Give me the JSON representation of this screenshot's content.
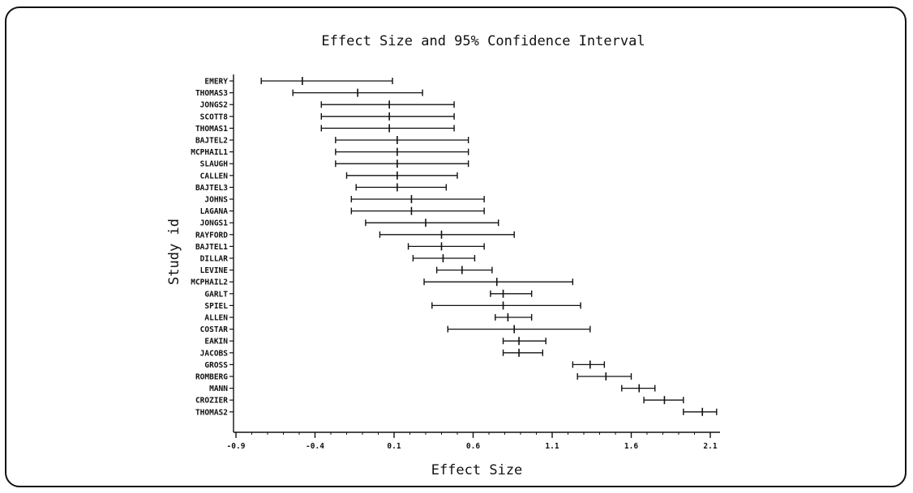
{
  "chart_data": {
    "type": "forest",
    "title": "Effect Size and 95% Confidence Interval",
    "xlabel": "Effect Size",
    "ylabel": "Study id",
    "xlim": [
      -0.9,
      2.3
    ],
    "xticks": [
      -0.9,
      -0.4,
      0.1,
      0.6,
      1.1,
      1.6,
      2.1
    ],
    "xtick_labels": [
      "-0.9",
      "-0.4",
      "0.1",
      "0.6",
      "1.1",
      "1.6",
      "2.1"
    ],
    "studies": [
      {
        "id": "EMERY",
        "es": -0.48,
        "lower": -0.74,
        "upper": 0.09
      },
      {
        "id": "THOMAS3",
        "es": -0.13,
        "lower": -0.54,
        "upper": 0.28
      },
      {
        "id": "JONGS2",
        "es": 0.07,
        "lower": -0.36,
        "upper": 0.48
      },
      {
        "id": "SCOTT8",
        "es": 0.07,
        "lower": -0.36,
        "upper": 0.48
      },
      {
        "id": "THOMAS1",
        "es": 0.07,
        "lower": -0.36,
        "upper": 0.48
      },
      {
        "id": "BAJTEL2",
        "es": 0.12,
        "lower": -0.27,
        "upper": 0.57
      },
      {
        "id": "MCPHAIL1",
        "es": 0.12,
        "lower": -0.27,
        "upper": 0.57
      },
      {
        "id": "SLAUGH",
        "es": 0.12,
        "lower": -0.27,
        "upper": 0.57
      },
      {
        "id": "CALLEN",
        "es": 0.12,
        "lower": -0.2,
        "upper": 0.5
      },
      {
        "id": "BAJTEL3",
        "es": 0.12,
        "lower": -0.14,
        "upper": 0.43
      },
      {
        "id": "JOHNS",
        "es": 0.21,
        "lower": -0.17,
        "upper": 0.67
      },
      {
        "id": "LAGANA",
        "es": 0.21,
        "lower": -0.17,
        "upper": 0.67
      },
      {
        "id": "JONGS1",
        "es": 0.3,
        "lower": -0.08,
        "upper": 0.76
      },
      {
        "id": "RAYFORD",
        "es": 0.4,
        "lower": 0.01,
        "upper": 0.86
      },
      {
        "id": "BAJTEL1",
        "es": 0.4,
        "lower": 0.19,
        "upper": 0.67
      },
      {
        "id": "DILLAR",
        "es": 0.41,
        "lower": 0.22,
        "upper": 0.61
      },
      {
        "id": "LEVINE",
        "es": 0.53,
        "lower": 0.37,
        "upper": 0.72
      },
      {
        "id": "MCPHAIL2",
        "es": 0.75,
        "lower": 0.29,
        "upper": 1.23
      },
      {
        "id": "GARLT",
        "es": 0.79,
        "lower": 0.71,
        "upper": 0.97
      },
      {
        "id": "SPIEL",
        "es": 0.79,
        "lower": 0.34,
        "upper": 1.28
      },
      {
        "id": "ALLEN",
        "es": 0.82,
        "lower": 0.74,
        "upper": 0.97
      },
      {
        "id": "COSTAR",
        "es": 0.86,
        "lower": 0.44,
        "upper": 1.34
      },
      {
        "id": "EAKIN",
        "es": 0.89,
        "lower": 0.79,
        "upper": 1.06
      },
      {
        "id": "JACOBS",
        "es": 0.89,
        "lower": 0.79,
        "upper": 1.04
      },
      {
        "id": "GROSS",
        "es": 1.34,
        "lower": 1.23,
        "upper": 1.43
      },
      {
        "id": "ROMBERG",
        "es": 1.44,
        "lower": 1.26,
        "upper": 1.6
      },
      {
        "id": "MANN",
        "es": 1.65,
        "lower": 1.54,
        "upper": 1.75
      },
      {
        "id": "CROZIER",
        "es": 1.81,
        "lower": 1.68,
        "upper": 1.93
      },
      {
        "id": "THOMAS2",
        "es": 2.05,
        "lower": 1.93,
        "upper": 2.14
      }
    ],
    "grid": false,
    "legend": "none"
  }
}
